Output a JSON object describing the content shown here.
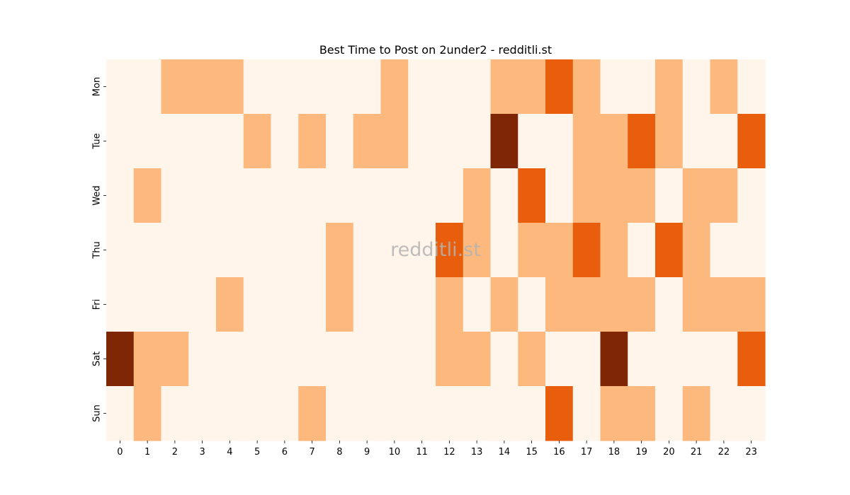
{
  "chart_data": {
    "type": "heatmap",
    "title": "Best Time to Post on 2under2 - redditli.st",
    "watermark": "redditli.st",
    "xlabel": "",
    "ylabel": "",
    "x_labels": [
      "0",
      "1",
      "2",
      "3",
      "4",
      "5",
      "6",
      "7",
      "8",
      "9",
      "10",
      "11",
      "12",
      "13",
      "14",
      "15",
      "16",
      "17",
      "18",
      "19",
      "20",
      "21",
      "22",
      "23"
    ],
    "y_labels": [
      "Mon",
      "Tue",
      "Wed",
      "Thu",
      "Fri",
      "Sat",
      "Sun"
    ],
    "values": [
      [
        0,
        0,
        1,
        1,
        1,
        0,
        0,
        0,
        0,
        0,
        1,
        0,
        0,
        0,
        1,
        1,
        2,
        1,
        0,
        0,
        1,
        0,
        1,
        0
      ],
      [
        0,
        0,
        0,
        0,
        0,
        1,
        0,
        1,
        0,
        1,
        1,
        0,
        0,
        0,
        3,
        0,
        0,
        1,
        1,
        2,
        1,
        0,
        0,
        2
      ],
      [
        0,
        1,
        0,
        0,
        0,
        0,
        0,
        0,
        0,
        0,
        0,
        0,
        0,
        1,
        0,
        2,
        0,
        1,
        1,
        1,
        0,
        1,
        1,
        0
      ],
      [
        0,
        0,
        0,
        0,
        0,
        0,
        0,
        0,
        1,
        0,
        0,
        0,
        2,
        1,
        0,
        1,
        1,
        2,
        1,
        0,
        2,
        1,
        0,
        0
      ],
      [
        0,
        0,
        0,
        0,
        1,
        0,
        0,
        0,
        1,
        0,
        0,
        0,
        1,
        0,
        1,
        0,
        1,
        1,
        1,
        1,
        0,
        1,
        1,
        1
      ],
      [
        3,
        1,
        1,
        0,
        0,
        0,
        0,
        0,
        0,
        0,
        0,
        0,
        1,
        1,
        0,
        1,
        0,
        0,
        3,
        0,
        0,
        0,
        0,
        2
      ],
      [
        0,
        1,
        0,
        0,
        0,
        0,
        0,
        1,
        0,
        0,
        0,
        0,
        0,
        0,
        0,
        0,
        2,
        0,
        1,
        1,
        0,
        1,
        0,
        0
      ]
    ],
    "colormap": [
      "#fff5eb",
      "#fdb97d",
      "#e95e0d",
      "#7f2704"
    ],
    "grid": false,
    "legend": "none"
  }
}
